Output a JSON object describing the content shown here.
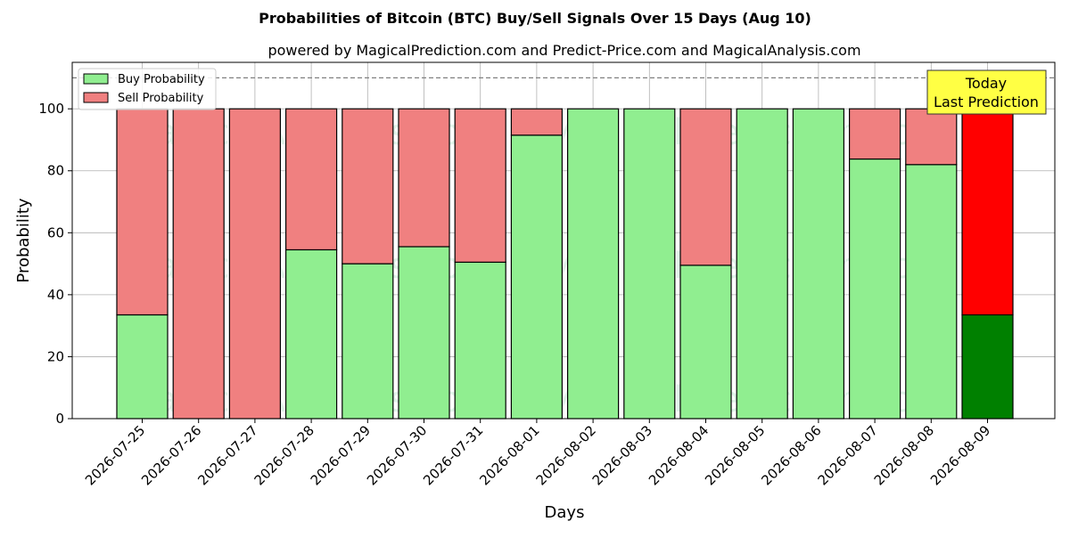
{
  "chart_data": {
    "type": "bar",
    "stacked": true,
    "title": "Probabilities of Bitcoin (BTC) Buy/Sell Signals Over 15 Days (Aug 10)",
    "subtitle": "powered by MagicalPrediction.com and Predict-Price.com and MagicalAnalysis.com",
    "xlabel": "Days",
    "ylabel": "Probability",
    "ylim": [
      0,
      115
    ],
    "yticks": [
      0,
      20,
      40,
      60,
      80,
      100
    ],
    "grid": true,
    "legend_position": "top-left",
    "reference_line": 110,
    "categories": [
      "2026-07-25",
      "2026-07-26",
      "2026-07-27",
      "2026-07-28",
      "2026-07-29",
      "2026-07-30",
      "2026-07-31",
      "2026-08-01",
      "2026-08-02",
      "2026-08-03",
      "2026-08-04",
      "2026-08-05",
      "2026-08-06",
      "2026-08-07",
      "2026-08-08",
      "2026-08-09"
    ],
    "series": [
      {
        "name": "Buy Probability",
        "color": "#90ee90",
        "highlight_color": "#008000",
        "values": [
          33.5,
          0,
          0,
          54.5,
          50,
          55.5,
          50.5,
          91.5,
          100,
          100,
          49.5,
          100,
          100,
          83.8,
          82,
          33.5
        ]
      },
      {
        "name": "Sell Probability",
        "color": "#f08080",
        "highlight_color": "#ff0000",
        "values": [
          66.5,
          100,
          100,
          45.5,
          50,
          44.5,
          49.5,
          8.5,
          0,
          0,
          50.5,
          0,
          0,
          16.2,
          18,
          66.5
        ]
      }
    ],
    "highlight_index": 15,
    "annotation": {
      "line1": "Today",
      "line2": "Last Prediction",
      "color": "#ffff44"
    },
    "watermarks": [
      "MagicalAnalysis.com",
      "MagicalPrediction.com"
    ]
  }
}
